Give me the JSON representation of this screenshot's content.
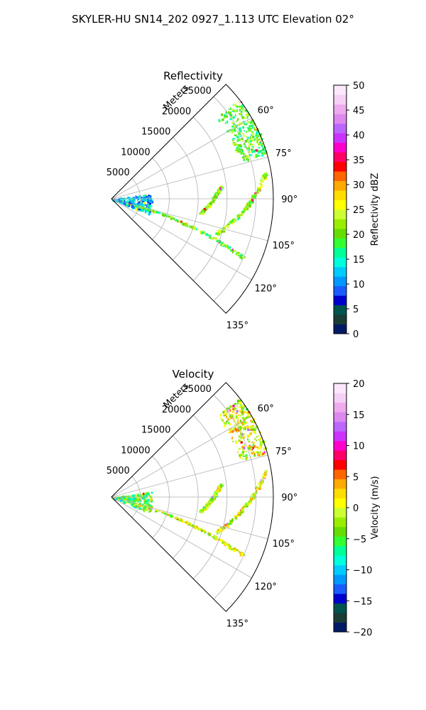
{
  "figure": {
    "suptitle": "SKYLER-HU  SN14_202  0927_1.113 UTC Elevation 02°"
  },
  "chart_data": [
    {
      "type": "polar-sector-field",
      "title": "Reflectivity",
      "radial_label": "Meters",
      "radial_ticks": [
        5000,
        10000,
        15000,
        20000,
        25000
      ],
      "radial_tick_labels": [
        "5000",
        "10000",
        "15000",
        "20000",
        "25000"
      ],
      "r_max": 28000,
      "azimuth_range_deg": [
        45,
        135
      ],
      "azimuth_ticks_deg": [
        60,
        75,
        90,
        105,
        120,
        135
      ],
      "azimuth_tick_labels": [
        "60°",
        "75°",
        "90°",
        "105°",
        "120°",
        "135°"
      ],
      "grid": true,
      "colorbar": {
        "label": "Reflectivity dBZ",
        "range": [
          0,
          50
        ],
        "ticks": [
          0,
          5,
          10,
          15,
          20,
          25,
          30,
          35,
          40,
          45,
          50
        ],
        "tick_labels": [
          "0",
          "5",
          "10",
          "15",
          "20",
          "25",
          "30",
          "35",
          "40",
          "45",
          "50"
        ],
        "colors": [
          "#001a66",
          "#1a3d33",
          "#00544f",
          "#0000cc",
          "#1a5cff",
          "#0099ff",
          "#00ccff",
          "#00ffdd",
          "#00ff99",
          "#33ff33",
          "#66dd00",
          "#99ee00",
          "#ccff33",
          "#ffff00",
          "#ffdd00",
          "#ffaa00",
          "#ff6600",
          "#ff0000",
          "#ff0066",
          "#ff00cc",
          "#cc33ff",
          "#bb66ff",
          "#dd88ee",
          "#eeaaee",
          "#f5d0f5",
          "#fbe8fb"
        ]
      },
      "echo_features": [
        {
          "name": "near-range clutter",
          "az": [
            82,
            112
          ],
          "r": [
            0,
            7000
          ],
          "value": 12
        },
        {
          "name": "outer band",
          "az": [
            52,
            74
          ],
          "r": [
            23000,
            28000
          ],
          "value": 20
        },
        {
          "name": "line A",
          "from": {
            "az": 80,
            "r": 27000
          },
          "to": {
            "az": 108,
            "r": 19000
          },
          "value": 22
        },
        {
          "name": "line B",
          "from": {
            "az": 104,
            "r": 4000
          },
          "to": {
            "az": 114,
            "r": 25000
          },
          "value": 20
        },
        {
          "name": "line C",
          "from": {
            "az": 83,
            "r": 19000
          },
          "to": {
            "az": 99,
            "r": 15500
          },
          "value": 22
        }
      ]
    },
    {
      "type": "polar-sector-field",
      "title": "Velocity",
      "radial_label": "Meters",
      "radial_ticks": [
        5000,
        10000,
        15000,
        20000,
        25000
      ],
      "radial_tick_labels": [
        "5000",
        "10000",
        "15000",
        "20000",
        "25000"
      ],
      "r_max": 28000,
      "azimuth_range_deg": [
        45,
        135
      ],
      "azimuth_ticks_deg": [
        60,
        75,
        90,
        105,
        120,
        135
      ],
      "azimuth_tick_labels": [
        "60°",
        "75°",
        "90°",
        "105°",
        "120°",
        "135°"
      ],
      "grid": true,
      "colorbar": {
        "label": "Velocity (m/s)",
        "range": [
          -20,
          20
        ],
        "ticks": [
          -20,
          -15,
          -10,
          -5,
          0,
          5,
          10,
          15,
          20
        ],
        "tick_labels": [
          "−20",
          "−15",
          "−10",
          "−5",
          "0",
          "5",
          "10",
          "15",
          "20"
        ],
        "colors": [
          "#001a66",
          "#1a3d33",
          "#00544f",
          "#0000cc",
          "#1a5cff",
          "#0099ff",
          "#00ccff",
          "#00ffdd",
          "#00ff99",
          "#33ff33",
          "#66dd00",
          "#99ee00",
          "#ccff33",
          "#ffff00",
          "#ffdd00",
          "#ffaa00",
          "#ff6600",
          "#ff0000",
          "#ff0066",
          "#ff00cc",
          "#cc33ff",
          "#bb66ff",
          "#dd88ee",
          "#eeaaee",
          "#f5d0f5",
          "#fbe8fb"
        ]
      },
      "echo_features": [
        {
          "name": "near-range clutter",
          "az": [
            82,
            112
          ],
          "r": [
            0,
            7000
          ],
          "value": -5
        },
        {
          "name": "outer band",
          "az": [
            52,
            74
          ],
          "r": [
            23000,
            28000
          ],
          "value": 0
        },
        {
          "name": "line A",
          "from": {
            "az": 80,
            "r": 27000
          },
          "to": {
            "az": 108,
            "r": 19000
          },
          "value": 0
        },
        {
          "name": "line B",
          "from": {
            "az": 104,
            "r": 4000
          },
          "to": {
            "az": 114,
            "r": 25000
          },
          "value": 0
        },
        {
          "name": "line C",
          "from": {
            "az": 83,
            "r": 19000
          },
          "to": {
            "az": 99,
            "r": 15500
          },
          "value": -2
        }
      ]
    }
  ]
}
